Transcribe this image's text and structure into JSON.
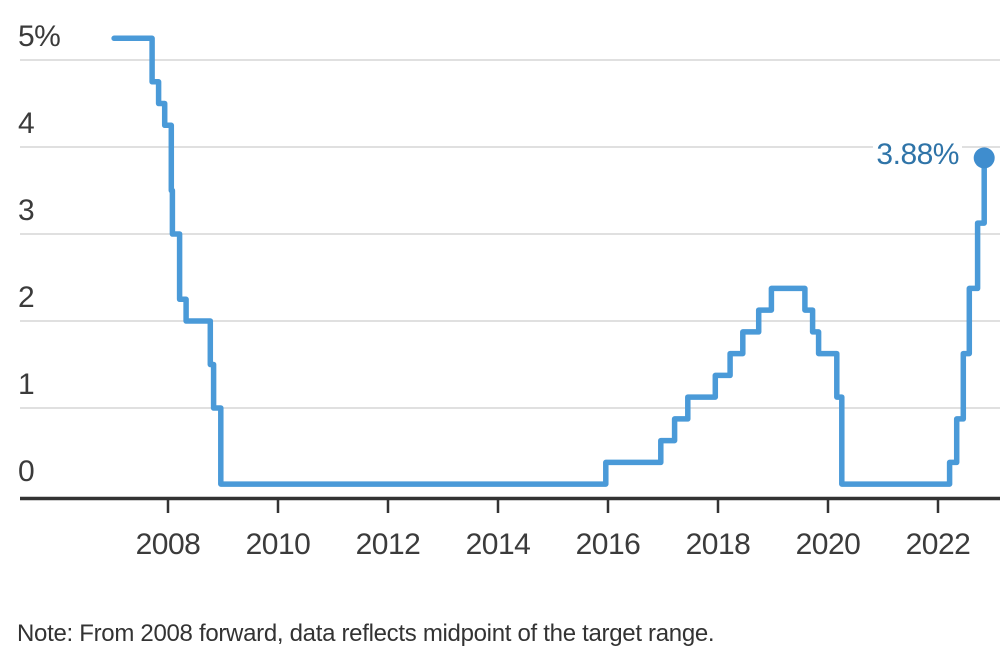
{
  "chart_data": {
    "type": "line",
    "step": "after",
    "unit": "%",
    "series": [
      {
        "points": [
          [
            2007.02,
            5.25
          ],
          [
            2007.71,
            4.75
          ],
          [
            2007.83,
            4.5
          ],
          [
            2007.94,
            4.25
          ],
          [
            2008.06,
            3.5
          ],
          [
            2008.08,
            3.0
          ],
          [
            2008.21,
            2.25
          ],
          [
            2008.33,
            2.0
          ],
          [
            2008.77,
            1.5
          ],
          [
            2008.83,
            1.0
          ],
          [
            2008.96,
            0.125
          ],
          [
            2015.96,
            0.375
          ],
          [
            2016.96,
            0.625
          ],
          [
            2017.21,
            0.875
          ],
          [
            2017.45,
            1.125
          ],
          [
            2017.95,
            1.375
          ],
          [
            2018.22,
            1.625
          ],
          [
            2018.45,
            1.875
          ],
          [
            2018.74,
            2.125
          ],
          [
            2018.97,
            2.375
          ],
          [
            2019.58,
            2.125
          ],
          [
            2019.72,
            1.875
          ],
          [
            2019.83,
            1.625
          ],
          [
            2020.16,
            1.125
          ],
          [
            2020.25,
            0.125
          ],
          [
            2022.21,
            0.375
          ],
          [
            2022.34,
            0.875
          ],
          [
            2022.46,
            1.625
          ],
          [
            2022.57,
            2.375
          ],
          [
            2022.72,
            3.125
          ],
          [
            2022.84,
            3.875
          ]
        ]
      }
    ],
    "end_label": "3.88%",
    "end_marker": "dot",
    "end_value": 3.88,
    "x_axis": {
      "ticks": [
        2008,
        2010,
        2012,
        2014,
        2016,
        2018,
        2020,
        2022
      ],
      "range": [
        2007.0,
        2023.1
      ]
    },
    "y_axis": {
      "ticks": [
        {
          "value": 0,
          "label": "0"
        },
        {
          "value": 1,
          "label": "1"
        },
        {
          "value": 2,
          "label": "2"
        },
        {
          "value": 3,
          "label": "3"
        },
        {
          "value": 4,
          "label": "4"
        },
        {
          "value": 5,
          "label": "5%"
        }
      ],
      "range": [
        0,
        5.5
      ],
      "grid": true,
      "label_position": "above-gridline"
    },
    "note": "Note: From 2008 forward, data reflects midpoint of the target range."
  },
  "colors": {
    "line": "#4A9AD8",
    "dot": "#3F8DCE",
    "annotation": "#2F74A8",
    "grid": "#D6D6D6",
    "axis": "#333333",
    "tick_label": "#3B3B3B",
    "note_text": "#333333",
    "background": "#FFFFFF"
  }
}
